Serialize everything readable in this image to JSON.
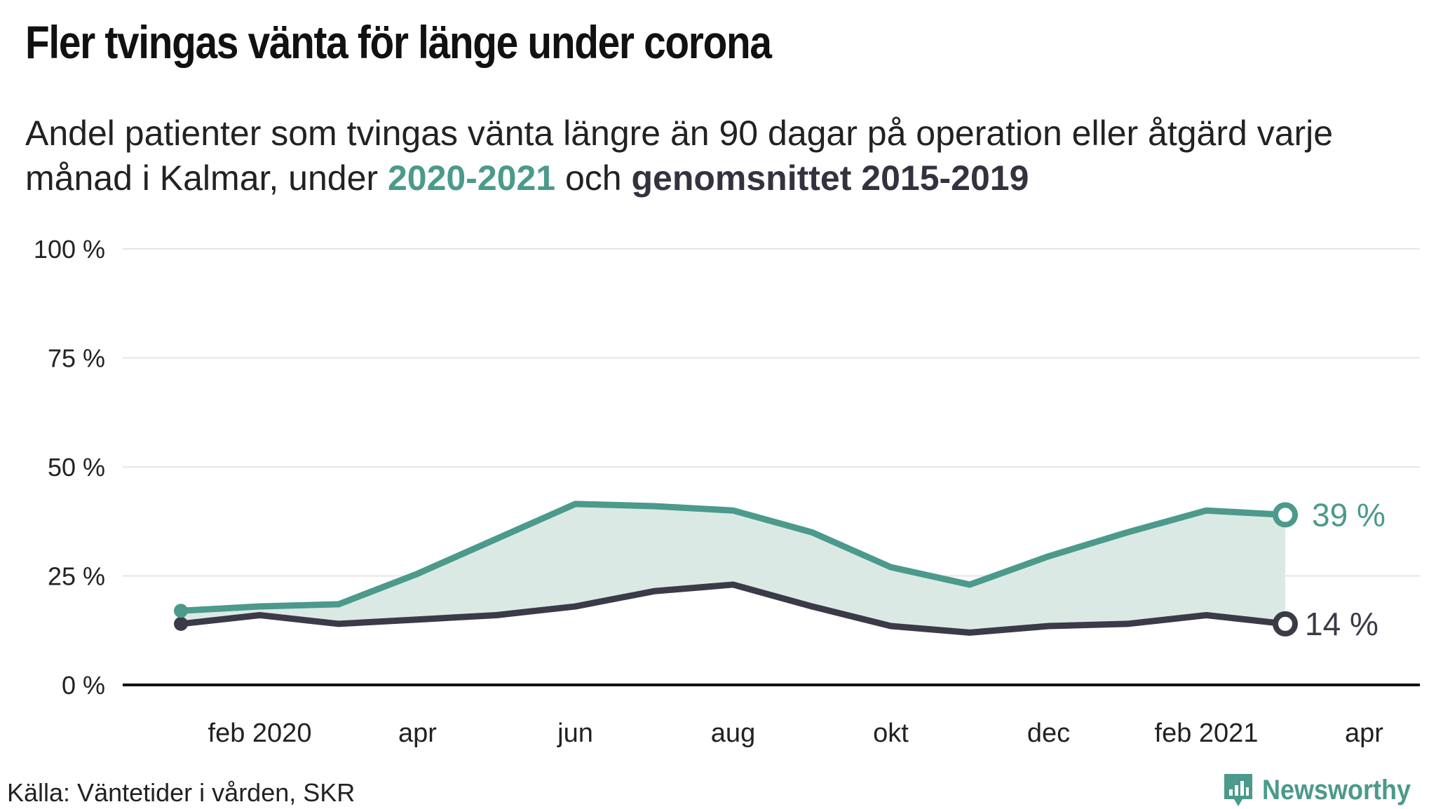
{
  "header": {
    "title": "Fler tvingas vänta för länge under corona",
    "subtitle_pre": "Andel patienter som tvingas vänta längre än 90 dagar på operation eller åtgärd varje månad i Kalmar, under ",
    "subtitle_series_a": "2020-2021",
    "subtitle_mid": " och ",
    "subtitle_series_b": "genomsnittet 2015-2019"
  },
  "footer": {
    "source": "Källa: Väntetider i vården, SKR",
    "brand": "Newsworthy"
  },
  "colors": {
    "series_a": "#4b9a8b",
    "series_b": "#3a3a48",
    "area": "#dbe9e5",
    "grid": "#e6e6e6",
    "axis": "#111111"
  },
  "chart_data": {
    "type": "line",
    "x_months": [
      "2020-01",
      "2020-02",
      "2020-03",
      "2020-04",
      "2020-05",
      "2020-06",
      "2020-07",
      "2020-08",
      "2020-09",
      "2020-10",
      "2020-11",
      "2020-12",
      "2021-01",
      "2021-02",
      "2021-03"
    ],
    "x_ticks": [
      {
        "month": "2020-02",
        "label": "feb 2020"
      },
      {
        "month": "2020-04",
        "label": "apr"
      },
      {
        "month": "2020-06",
        "label": "jun"
      },
      {
        "month": "2020-08",
        "label": "aug"
      },
      {
        "month": "2020-10",
        "label": "okt"
      },
      {
        "month": "2020-12",
        "label": "dec"
      },
      {
        "month": "2021-02",
        "label": "feb 2021"
      },
      {
        "month": "2021-04",
        "label": "apr"
      }
    ],
    "y_ticks": [
      {
        "value": 0,
        "label": "0 %"
      },
      {
        "value": 25,
        "label": "25 %"
      },
      {
        "value": 50,
        "label": "50 %"
      },
      {
        "value": 75,
        "label": "75 %"
      },
      {
        "value": 100,
        "label": "100 %"
      }
    ],
    "ylim": [
      0,
      100
    ],
    "grid": true,
    "series": [
      {
        "name": "2020-2021",
        "values": [
          17,
          18,
          18.5,
          25.5,
          33.5,
          41.5,
          41,
          40,
          35,
          27,
          23,
          29.5,
          35,
          40,
          39
        ],
        "end_label": "39 %"
      },
      {
        "name": "genomsnittet 2015-2019",
        "values": [
          14,
          16,
          14,
          15,
          16,
          18,
          21.5,
          23,
          18,
          13.5,
          12,
          13.5,
          14,
          16,
          14
        ],
        "end_label": "14 %"
      }
    ]
  }
}
